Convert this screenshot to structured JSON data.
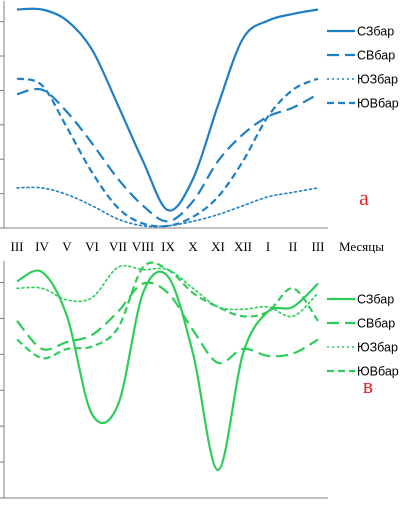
{
  "chart_data": [
    {
      "type": "line",
      "panel_label": "a",
      "x": [
        "III",
        "IV",
        "V",
        "VI",
        "VII",
        "VIII",
        "IX",
        "X",
        "XI",
        "XII",
        "I",
        "II",
        "III"
      ],
      "xlabel": "Месяцы",
      "ylabel": "",
      "title": "",
      "grid": false,
      "legend_position": "right",
      "color": "#1f7fc4",
      "ylim": [
        0,
        100
      ],
      "series": [
        {
          "name": "СЗбар",
          "style": "solid",
          "values": [
            98,
            98,
            93,
            80,
            55,
            30,
            8,
            22,
            55,
            85,
            93,
            96,
            98
          ]
        },
        {
          "name": "СВбар",
          "style": "dash-long",
          "values": [
            60,
            62,
            52,
            38,
            22,
            10,
            3,
            12,
            30,
            42,
            50,
            54,
            60
          ]
        },
        {
          "name": "ЮЗбар",
          "style": "dotted",
          "values": [
            18,
            18,
            15,
            10,
            4,
            1,
            1,
            3,
            6,
            10,
            14,
            16,
            18
          ]
        },
        {
          "name": "ЮВбар",
          "style": "dash-short",
          "values": [
            67,
            64,
            45,
            25,
            9,
            2,
            1,
            5,
            14,
            30,
            50,
            62,
            67
          ]
        }
      ]
    },
    {
      "type": "line",
      "panel_label": "в",
      "x": [
        "III",
        "IV",
        "V",
        "VI",
        "VII",
        "VIII",
        "IX",
        "X",
        "XI",
        "XII",
        "I",
        "II",
        "III"
      ],
      "xlabel": "",
      "ylabel": "",
      "title": "",
      "grid": false,
      "legend_position": "right",
      "color": "#2ecc5a",
      "ylim": [
        0,
        100
      ],
      "series": [
        {
          "name": "СЗбар",
          "style": "solid",
          "values": [
            93,
            97,
            78,
            36,
            40,
            88,
            95,
            62,
            12,
            62,
            80,
            82,
            92
          ]
        },
        {
          "name": "СВбар",
          "style": "dash-long",
          "values": [
            76,
            64,
            67,
            70,
            80,
            92,
            88,
            72,
            58,
            64,
            61,
            62,
            68
          ]
        },
        {
          "name": "ЮЗбар",
          "style": "dotted",
          "values": [
            90,
            90,
            85,
            86,
            99,
            98,
            98,
            90,
            82,
            81,
            82,
            78,
            88
          ]
        },
        {
          "name": "ЮВбар",
          "style": "dash-short",
          "values": [
            68,
            60,
            64,
            65,
            73,
            99,
            98,
            88,
            82,
            78,
            80,
            90,
            76
          ]
        }
      ]
    }
  ]
}
